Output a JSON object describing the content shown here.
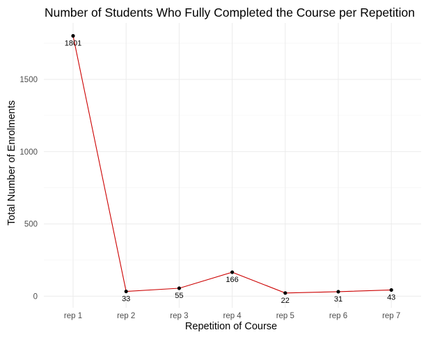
{
  "chart_data": {
    "type": "line",
    "title": "Number of Students Who Fully Completed the Course per Repetition",
    "xlabel": "Repetition of Course",
    "ylabel": "Total Number of Enrolments",
    "categories": [
      "rep 1",
      "rep 2",
      "rep 3",
      "rep 4",
      "rep 5",
      "rep 6",
      "rep 7"
    ],
    "values": [
      1801,
      33,
      55,
      166,
      22,
      31,
      43
    ],
    "data_labels": [
      "1801",
      "33",
      "55",
      "166",
      "22",
      "31",
      "43"
    ],
    "ylim": [
      -80,
      1890
    ],
    "yticks": [
      0,
      500,
      1000,
      1500
    ],
    "ytick_labels": [
      "0",
      "500",
      "1000",
      "1500"
    ],
    "grid": true,
    "line_color": "#cc0000",
    "point_color": "#000000"
  }
}
